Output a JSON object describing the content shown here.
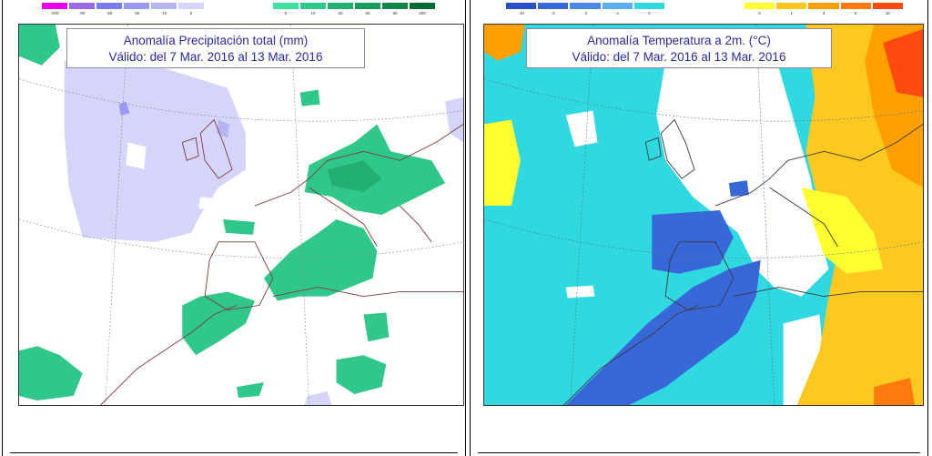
{
  "precip": {
    "title_line1": "Anomalía Precipitación total (mm)",
    "title_line2": "Válido: del 7 Mar. 2016 al 13 Mar. 2016",
    "legend_neg": {
      "colors": [
        "#f000f0",
        "#9a6ae6",
        "#7a7af0",
        "#9a9af5",
        "#b5b5f2",
        "#d5d5fa"
      ],
      "ticks": [
        "-200",
        "-90",
        "-60",
        "-30",
        "-10",
        "0"
      ]
    },
    "legend_pos": {
      "colors": [
        "#40e0a0",
        "#30c88a",
        "#22b070",
        "#1a9a5a",
        "#128448",
        "#0a6a36"
      ],
      "ticks": [
        "0",
        "10",
        "30",
        "60",
        "90",
        "200"
      ]
    }
  },
  "temp": {
    "title_line1": "Anomalía Temperatura a 2m. (°C)",
    "title_line2": "Válido: del 7 Mar. 2016 al 13 Mar. 2016",
    "legend_neg": {
      "colors": [
        "#2a4fc8",
        "#3868d8",
        "#4a88e8",
        "#58b0f0",
        "#30d8e0"
      ],
      "ticks": [
        "-10",
        "-5",
        "-3",
        "-1",
        "0"
      ]
    },
    "legend_pos": {
      "colors": [
        "#ffff30",
        "#ffc820",
        "#ffa000",
        "#ff7a10",
        "#ff4a10"
      ],
      "ticks": [
        "0",
        "1",
        "3",
        "6",
        "10"
      ]
    }
  }
}
